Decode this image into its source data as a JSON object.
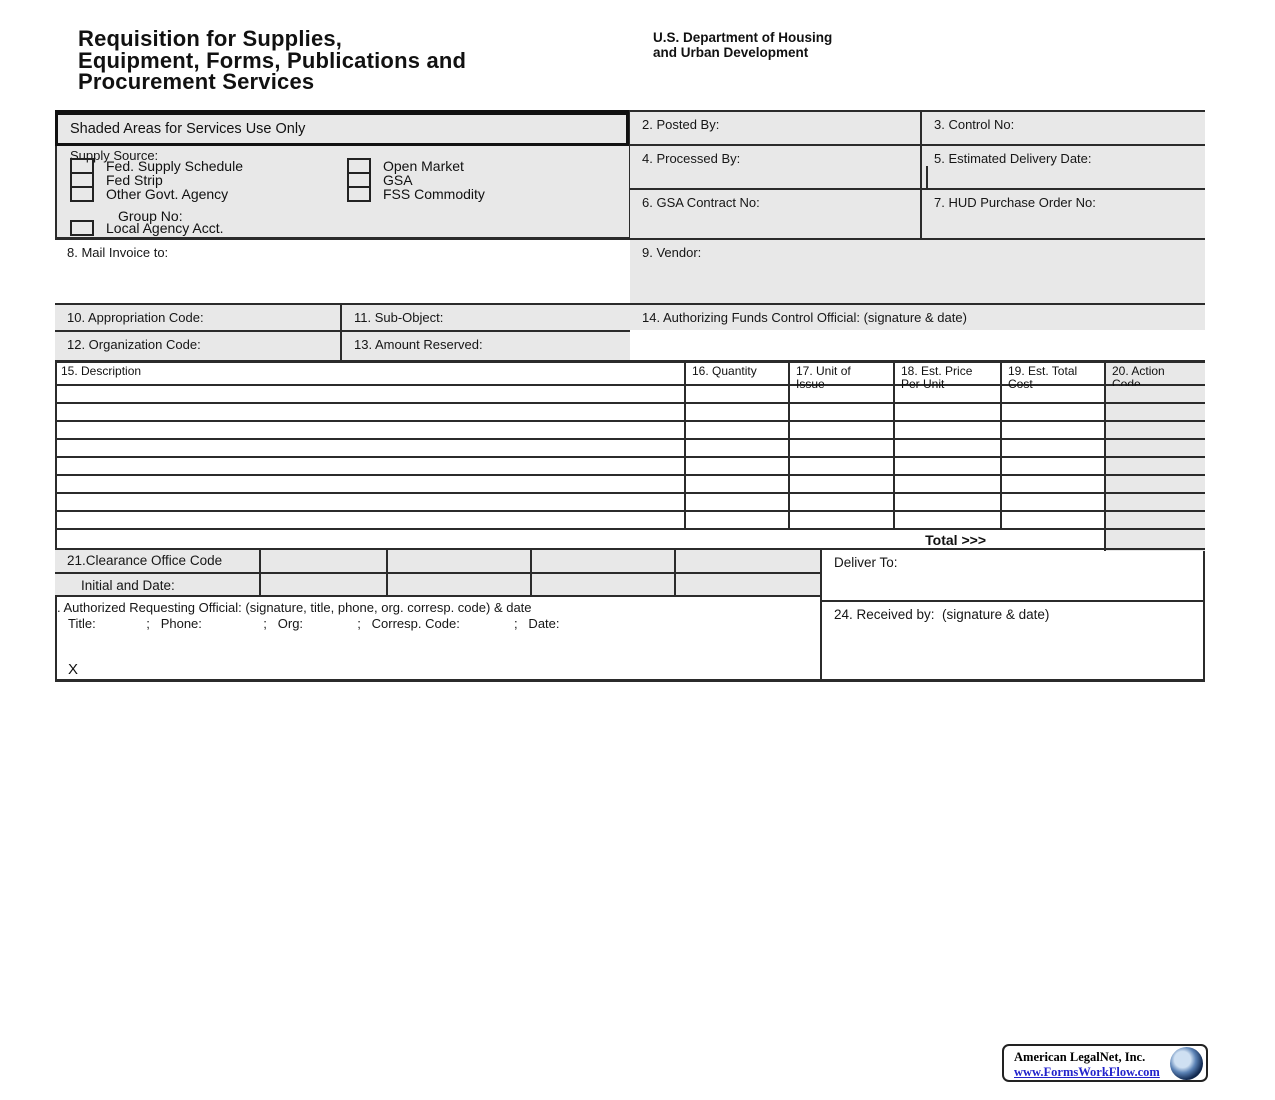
{
  "header": {
    "title": "Requisition for Supplies,\nEquipment, Forms, Publications and\nProcurement Services",
    "department": "U.S. Department of Housing\nand Urban Development"
  },
  "banner": "Shaded Areas for Services Use Only",
  "supply_source": {
    "label": "Supply Source:",
    "left_options": [
      "Fed. Supply Schedule",
      "Fed Strip",
      "Other Govt. Agency"
    ],
    "group_no_label": "Group No:",
    "local_agency_label": "Local Agency Acct.",
    "right_options": [
      "Open Market",
      "GSA",
      "FSS Commodity"
    ]
  },
  "fields": {
    "posted_by": "2. Posted By:",
    "control_no": "3. Control No:",
    "processed_by": "4. Processed By:",
    "est_delivery_date": "5. Estimated Delivery Date:",
    "gsa_contract_no": "6. GSA Contract No:",
    "hud_purchase_order_no": "7. HUD Purchase Order No:",
    "mail_invoice_to": "8. Mail Invoice to:",
    "vendor": "9. Vendor:",
    "appropriation_code": "10. Appropriation Code:",
    "sub_object": "11. Sub-Object:",
    "organization_code": "12. Organization Code:",
    "amount_reserved": "13. Amount Reserved:",
    "authorizing_official": "14. Authorizing Funds Control Official: (signature & date)"
  },
  "items_table": {
    "columns": {
      "description": "15. Description",
      "quantity": "16. Quantity",
      "unit_of_issue": "17. Unit of\nIssue",
      "est_price_per_unit": "18. Est. Price\nPer Unit",
      "est_total_cost": "19. Est. Total\nCost",
      "action_code": "20. Action\nCode"
    },
    "row_count": 8,
    "total_label": "Total >>>"
  },
  "clearance": {
    "code_label": "21.Clearance Office Code",
    "initial_label": "Initial and Date:",
    "cell_count": 4
  },
  "requesting_official": {
    "line1": ". Authorized Requesting Official: (signature, title, phone, org. corresp. code) & date",
    "line2": "Title:              ;   Phone:                 ;   Org:               ;   Corresp. Code:               ;   Date:",
    "signature_mark": "X"
  },
  "deliver_to": "Deliver To:",
  "received_by": "24. Received by:  (signature & date)",
  "footer_badge": {
    "company": "American LegalNet, Inc.",
    "url": "www.FormsWorkFlow.com"
  },
  "colors": {
    "shaded": "#e8e8e8",
    "line": "#2b2b2b",
    "link": "#2323cc"
  }
}
